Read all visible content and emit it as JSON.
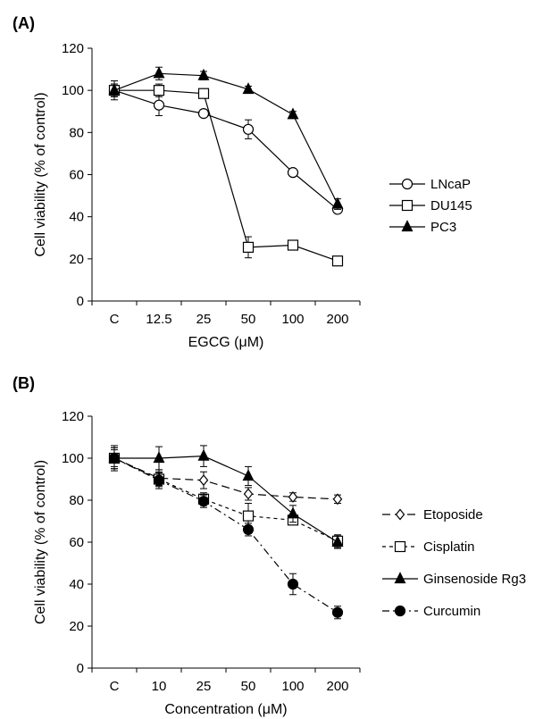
{
  "chart_data": [
    {
      "type": "line",
      "panel_label": "(A)",
      "categories": [
        "C",
        "12.5",
        "25",
        "50",
        "100",
        "200"
      ],
      "xlabel": "EGCG (μM)",
      "ylabel": "Cell viability (% of control)",
      "ylim": [
        0,
        120
      ],
      "yticks": [
        "0",
        "20",
        "40",
        "60",
        "80",
        "100",
        "120"
      ],
      "legend_position": "right",
      "grid": false,
      "series": [
        {
          "name": "LNcaP",
          "marker": "circle-open",
          "dash": "solid",
          "values": [
            100,
            93,
            89,
            81.5,
            61,
            43.5
          ],
          "errors": [
            3,
            5,
            1.5,
            4.5,
            1.5,
            1.5
          ]
        },
        {
          "name": "DU145",
          "marker": "square-open",
          "dash": "solid",
          "values": [
            100,
            100,
            98.5,
            25.5,
            26.5,
            19
          ],
          "errors": [
            3,
            3,
            2,
            5,
            2,
            1
          ]
        },
        {
          "name": "PC3",
          "marker": "triangle-filled",
          "dash": "solid",
          "values": [
            100,
            108,
            107,
            100.5,
            88.5,
            46
          ],
          "errors": [
            4.5,
            3,
            2,
            1.5,
            1.5,
            2.5
          ]
        }
      ]
    },
    {
      "type": "line",
      "panel_label": "(B)",
      "categories": [
        "C",
        "10",
        "25",
        "50",
        "100",
        "200"
      ],
      "xlabel": "Concentration (μM)",
      "ylabel": "Cell viability (% of control)",
      "ylim": [
        0,
        120
      ],
      "yticks": [
        "0",
        "20",
        "40",
        "60",
        "80",
        "100",
        "120"
      ],
      "legend_position": "right",
      "grid": false,
      "series": [
        {
          "name": "Etoposide",
          "marker": "diamond-open",
          "dash": "longdash",
          "values": [
            100,
            90.5,
            89.5,
            83,
            81.5,
            80.5
          ],
          "errors": [
            5,
            4,
            4,
            3,
            2,
            2
          ]
        },
        {
          "name": "Cisplatin",
          "marker": "square-open",
          "dash": "shortdash",
          "values": [
            100,
            90,
            80.5,
            72.5,
            70.5,
            60.5
          ],
          "errors": [
            5,
            3,
            3,
            6,
            2,
            3
          ]
        },
        {
          "name": "Ginsenoside Rg3",
          "marker": "triangle-filled",
          "dash": "solid",
          "values": [
            100,
            100,
            101,
            91.5,
            73.5,
            60
          ],
          "errors": [
            4,
            5.5,
            5,
            4.5,
            4,
            3
          ]
        },
        {
          "name": "Curcumin",
          "marker": "circle-filled",
          "dash": "dashdot",
          "values": [
            100,
            89.5,
            79.5,
            66,
            40,
            26.5
          ],
          "errors": [
            6,
            4,
            3,
            3,
            5,
            3
          ]
        }
      ]
    }
  ]
}
